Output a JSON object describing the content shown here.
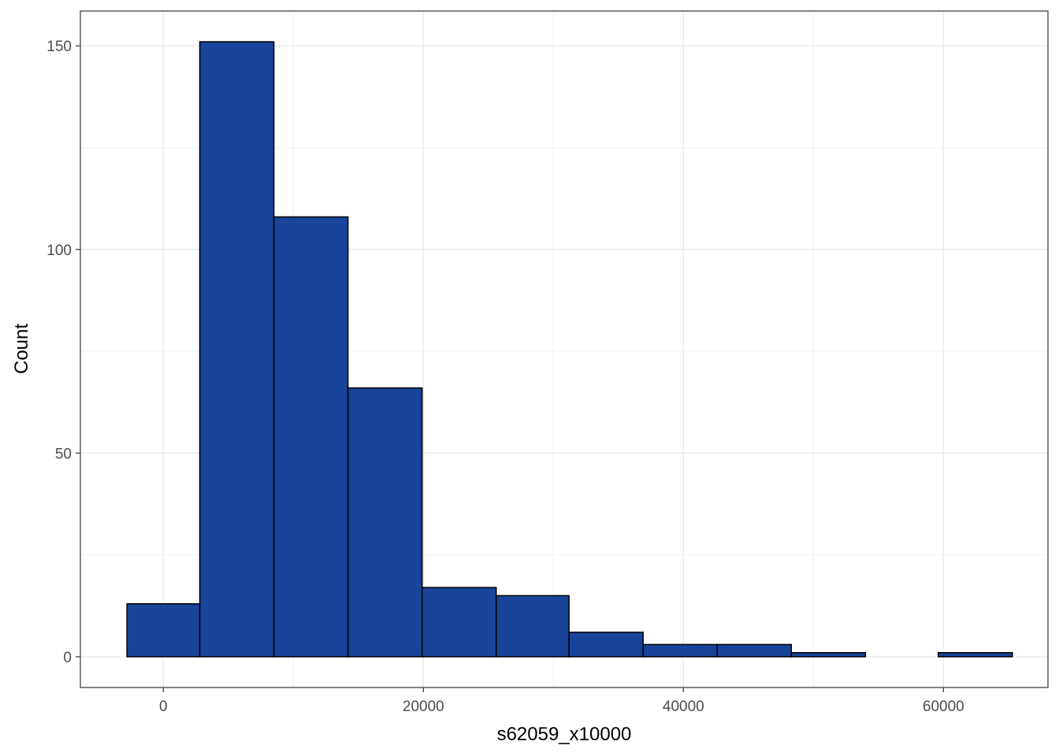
{
  "chart_data": {
    "type": "histogram",
    "xlabel": "s62059_x10000",
    "ylabel": "Count",
    "xlim": [
      -6384,
      68040
    ],
    "ylim": [
      -7.55,
      158.55
    ],
    "x_ticks": [
      0,
      20000,
      40000,
      60000
    ],
    "y_ticks": [
      0,
      50,
      100,
      150
    ],
    "x_minor_ticks": [
      10000,
      30000,
      50000
    ],
    "y_minor_ticks": [
      25,
      75,
      125
    ],
    "grid": true,
    "fill_color": "#18449A",
    "edge_color": "#000000",
    "bins": [
      {
        "x0": -2800,
        "x1": 2800,
        "count": 13
      },
      {
        "x0": 2800,
        "x1": 8500,
        "count": 151
      },
      {
        "x0": 8500,
        "x1": 14200,
        "count": 108
      },
      {
        "x0": 14200,
        "x1": 19900,
        "count": 66
      },
      {
        "x0": 19900,
        "x1": 25600,
        "count": 17
      },
      {
        "x0": 25600,
        "x1": 31200,
        "count": 15
      },
      {
        "x0": 31200,
        "x1": 36900,
        "count": 6
      },
      {
        "x0": 36900,
        "x1": 42600,
        "count": 3
      },
      {
        "x0": 42600,
        "x1": 48300,
        "count": 3
      },
      {
        "x0": 48300,
        "x1": 54000,
        "count": 1
      },
      {
        "x0": 54000,
        "x1": 59600,
        "count": 0
      },
      {
        "x0": 59600,
        "x1": 65300,
        "count": 1
      }
    ]
  }
}
